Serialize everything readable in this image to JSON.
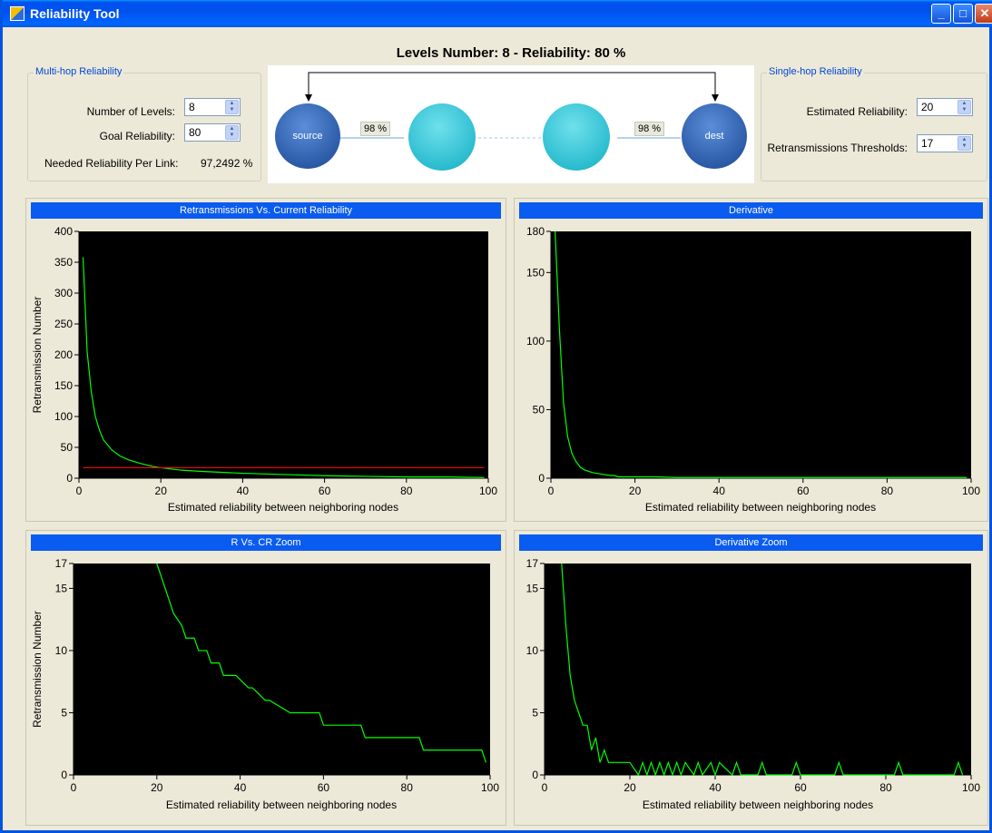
{
  "window": {
    "title": "Reliability Tool"
  },
  "headline": "Levels Number: 8  -  Reliability: 80 %",
  "multihop": {
    "legend": "Multi-hop Reliability",
    "levels_label": "Number of Levels:",
    "levels_value": "8",
    "goal_label": "Goal Reliability:",
    "goal_value": "80",
    "needed_label": "Needed Reliability Per Link:",
    "needed_value": "97,2492 %"
  },
  "singlehop": {
    "legend": "Single-hop Reliability",
    "estimated_label": "Estimated Reliability:",
    "estimated_value": "20",
    "threshold_label": "Retransmissions Thresholds:",
    "threshold_value": "17"
  },
  "diagram": {
    "source_label": "source",
    "dest_label": "dest",
    "link1_pct": "98 %",
    "link2_pct": "98 %"
  },
  "chart_data": [
    {
      "type": "line",
      "title": "Retransmissions Vs. Current Reliability",
      "xlabel": "Estimated reliability between neighboring nodes",
      "ylabel": "Retransmission Number",
      "xlim": [
        0,
        100
      ],
      "ylim": [
        0,
        400
      ],
      "xticks": [
        0,
        20,
        40,
        60,
        80,
        100
      ],
      "yticks": [
        0,
        50,
        100,
        150,
        200,
        250,
        300,
        350,
        400
      ],
      "series": [
        {
          "color": "#00ff00",
          "x": [
            1,
            2,
            3,
            4,
            5,
            6,
            8,
            10,
            12,
            15,
            18,
            20,
            25,
            30,
            40,
            50,
            60,
            70,
            80,
            90,
            99
          ],
          "y": [
            358,
            205,
            140,
            100,
            78,
            62,
            46,
            36,
            30,
            24,
            19,
            17,
            13,
            11,
            8,
            6,
            4,
            3,
            2,
            2,
            1
          ]
        },
        {
          "color": "#ff0000",
          "x": [
            1,
            99
          ],
          "y": [
            17,
            17
          ]
        }
      ]
    },
    {
      "type": "line",
      "title": "Derivative",
      "xlabel": "Estimated reliability between neighboring nodes",
      "ylabel": "",
      "xlim": [
        0,
        100
      ],
      "ylim": [
        0,
        180
      ],
      "xticks": [
        0,
        20,
        40,
        60,
        80,
        100
      ],
      "yticks": [
        0,
        50,
        100,
        150,
        180
      ],
      "series": [
        {
          "color": "#00ff00",
          "x": [
            1,
            2,
            3,
            4,
            5,
            6,
            7,
            8,
            10,
            12,
            14,
            15,
            16,
            18,
            20,
            25,
            30,
            40,
            50,
            60,
            70,
            80,
            90,
            99
          ],
          "y": [
            180,
            110,
            55,
            30,
            18,
            12,
            8,
            6,
            4,
            3,
            2,
            2,
            1,
            1,
            1,
            1,
            0.5,
            0.5,
            0.5,
            0.5,
            0.5,
            0.5,
            0.5,
            0.5
          ]
        }
      ]
    },
    {
      "type": "line",
      "title": "R Vs. CR Zoom",
      "xlabel": "Estimated reliability between neighboring nodes",
      "ylabel": "Retransmission Number",
      "xlim": [
        0,
        100
      ],
      "ylim": [
        0,
        17
      ],
      "xticks": [
        0,
        20,
        40,
        60,
        80,
        100
      ],
      "yticks": [
        0,
        5,
        10,
        15,
        17
      ],
      "series": [
        {
          "color": "#00ff00",
          "x": [
            20,
            23,
            24,
            26,
            27,
            29,
            30,
            32,
            33,
            35,
            36,
            38,
            39,
            42,
            43,
            46,
            47,
            52,
            53,
            59,
            60,
            69,
            70,
            83,
            84,
            98,
            99
          ],
          "y": [
            17,
            14,
            13,
            12,
            11,
            11,
            10,
            10,
            9,
            9,
            8,
            8,
            8,
            7,
            7,
            6,
            6,
            5,
            5,
            5,
            4,
            4,
            3,
            3,
            2,
            2,
            1
          ]
        }
      ]
    },
    {
      "type": "line",
      "title": "Derivative Zoom",
      "xlabel": "Estimated reliability between neighboring nodes",
      "ylabel": "",
      "xlim": [
        0,
        100
      ],
      "ylim": [
        0,
        17
      ],
      "xticks": [
        0,
        20,
        40,
        60,
        80,
        100
      ],
      "yticks": [
        0,
        5,
        10,
        15,
        17
      ],
      "series": [
        {
          "color": "#00ff00",
          "x": [
            4,
            5,
            6,
            7,
            8,
            9,
            10,
            11,
            12,
            13,
            14,
            15,
            16,
            20,
            22,
            23,
            24,
            25,
            26,
            27,
            28,
            29,
            30,
            31,
            32,
            33,
            35,
            36,
            37,
            39,
            40,
            41,
            44,
            45,
            46,
            50,
            51,
            52,
            58,
            59,
            60,
            68,
            69,
            70,
            82,
            83,
            84,
            96,
            97,
            98
          ],
          "y": [
            17,
            12,
            8,
            6,
            5,
            4,
            4,
            2,
            3,
            1,
            2,
            1,
            1,
            1,
            0,
            1,
            0,
            1,
            0,
            1,
            0,
            1,
            0,
            1,
            0,
            1,
            0,
            1,
            0,
            1,
            0,
            1,
            0,
            1,
            0,
            0,
            1,
            0,
            0,
            1,
            0,
            0,
            1,
            0,
            0,
            1,
            0,
            0,
            1,
            0
          ]
        }
      ]
    }
  ]
}
